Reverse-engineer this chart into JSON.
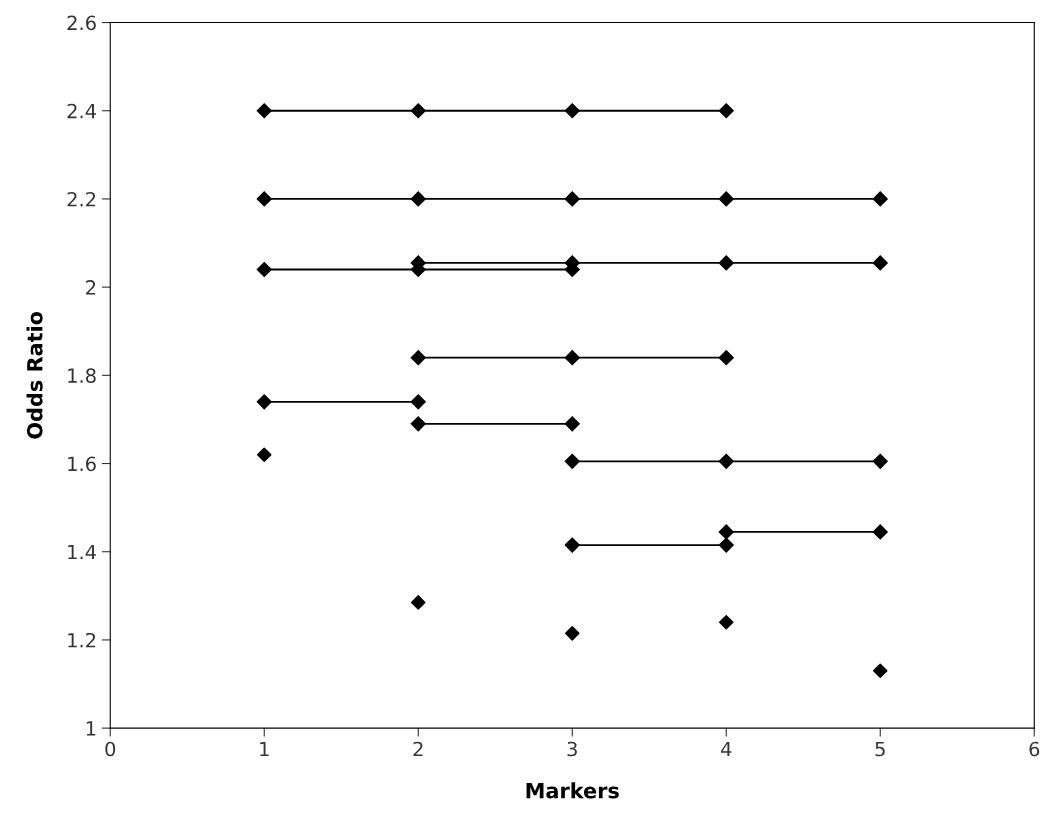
{
  "chart_data": {
    "type": "line",
    "xlabel": "Markers",
    "ylabel": "Odds Ratio",
    "xlim": [
      0,
      6
    ],
    "xticks": [
      0,
      1,
      2,
      3,
      4,
      5,
      6
    ],
    "ylim": [
      1,
      2.6
    ],
    "yticks": [
      1,
      1.2,
      1.4,
      1.6,
      1.8,
      2,
      2.2,
      2.4,
      2.6
    ],
    "grid": false,
    "marker": "diamond",
    "line_style": "solid",
    "series": [
      {
        "color": "#000000",
        "x": [
          1,
          2,
          3,
          4
        ],
        "values": [
          2.4,
          2.4,
          2.4,
          2.4
        ]
      },
      {
        "color": "#000000",
        "x": [
          1,
          2,
          3,
          4,
          5
        ],
        "values": [
          2.2,
          2.2,
          2.2,
          2.2,
          2.2
        ]
      },
      {
        "color": "#000000",
        "x": [
          1,
          2,
          3
        ],
        "values": [
          2.04,
          2.04,
          2.04
        ]
      },
      {
        "color": "#000000",
        "x": [
          2,
          3,
          4,
          5
        ],
        "values": [
          2.055,
          2.055,
          2.055,
          2.055
        ]
      },
      {
        "color": "#000000",
        "x": [
          2,
          3,
          4
        ],
        "values": [
          1.84,
          1.84,
          1.84
        ]
      },
      {
        "color": "#000000",
        "x": [
          1,
          2
        ],
        "values": [
          1.74,
          1.74
        ]
      },
      {
        "color": "#000000",
        "x": [
          2,
          3
        ],
        "values": [
          1.69,
          1.69
        ]
      },
      {
        "color": "#000000",
        "x": [
          3,
          4,
          5
        ],
        "values": [
          1.605,
          1.605,
          1.605
        ]
      },
      {
        "color": "#000000",
        "x": [
          4,
          5
        ],
        "values": [
          1.445,
          1.445
        ]
      },
      {
        "color": "#000000",
        "x": [
          3,
          4
        ],
        "values": [
          1.415,
          1.415
        ]
      },
      {
        "type": "scatter",
        "color": "#000000",
        "x": [
          1,
          2,
          3,
          4,
          5
        ],
        "values": [
          1.62,
          1.285,
          1.215,
          1.24,
          1.13
        ]
      }
    ]
  }
}
